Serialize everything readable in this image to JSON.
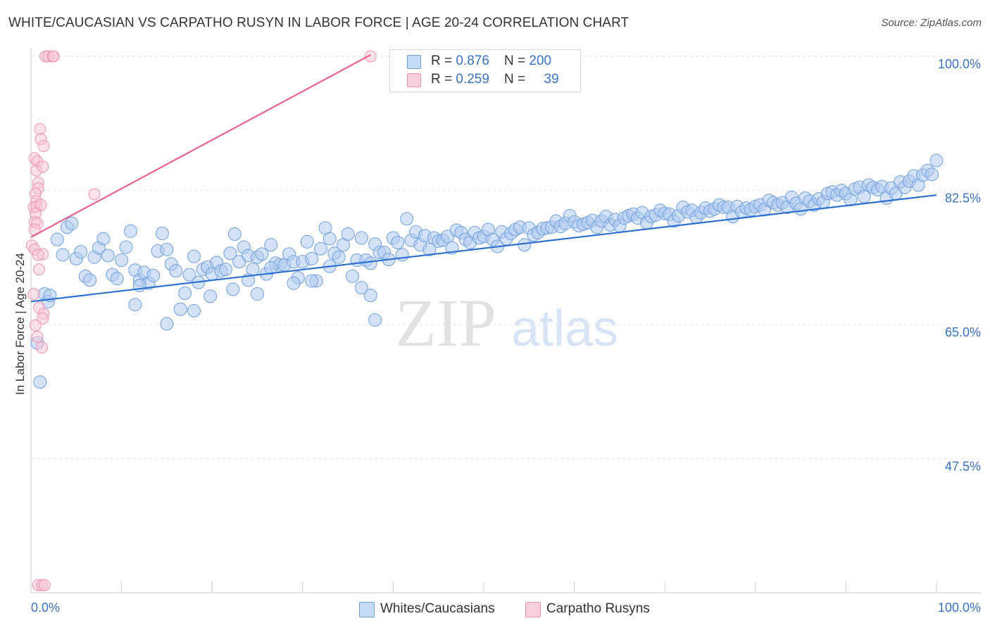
{
  "header": {
    "title": "WHITE/CAUCASIAN VS CARPATHO RUSYN IN LABOR FORCE | AGE 20-24 CORRELATION CHART",
    "source": "Source: ZipAtlas.com"
  },
  "watermark": {
    "zip": "ZIP",
    "atlas": "atlas"
  },
  "legend_top": {
    "rows": [
      {
        "r_label": "R = ",
        "r_value": "0.876",
        "n_label": "N = ",
        "n_value": "200",
        "color": "#7fb0e8"
      },
      {
        "r_label": "R = ",
        "r_value": "0.259",
        "n_label": "N = ",
        "n_value": "39",
        "color": "#f2a0bb"
      }
    ]
  },
  "legend_bottom": {
    "items": [
      {
        "label": "Whites/Caucasians",
        "color": "#7fb0e8"
      },
      {
        "label": "Carpatho Rusyns",
        "color": "#f2a0bb"
      }
    ]
  },
  "chart_data": {
    "type": "scatter",
    "title": "WHITE/CAUCASIAN VS CARPATHO RUSYN IN LABOR FORCE | AGE 20-24 CORRELATION CHART",
    "xlabel": "",
    "ylabel": "In Labor Force | Age 20-24",
    "xlim": [
      0,
      100
    ],
    "ylim": [
      30,
      100
    ],
    "x_tick_labels": [
      "0.0%",
      "100.0%"
    ],
    "y_tick_labels": [
      "100.0%",
      "82.5%",
      "65.0%",
      "47.5%"
    ],
    "y_ticks": [
      100,
      82.5,
      65,
      47.5
    ],
    "grid": true,
    "legend_position": "top-center",
    "colors": {
      "blue_fill": "#aecbf0",
      "blue_stroke": "#6f9fdc",
      "blue_line": "#2e70d1",
      "pink_fill": "#f8c4d3",
      "pink_stroke": "#ee93b1",
      "pink_line": "#e8638f",
      "axis_label": "#3a72c4"
    },
    "series": [
      {
        "name": "Whites/Caucasians",
        "r": 0.876,
        "n": 200,
        "trend": {
          "x": [
            0,
            100
          ],
          "y": [
            68.0,
            81.9
          ]
        },
        "points": [
          [
            0.7,
            62.6
          ],
          [
            1.0,
            57.5
          ],
          [
            1.5,
            69.0
          ],
          [
            1.9,
            68.0
          ],
          [
            2.1,
            68.8
          ],
          [
            2.9,
            76.1
          ],
          [
            3.5,
            74.1
          ],
          [
            4.0,
            77.7
          ],
          [
            4.5,
            78.2
          ],
          [
            5.0,
            73.6
          ],
          [
            5.5,
            74.5
          ],
          [
            6.0,
            71.3
          ],
          [
            6.5,
            70.8
          ],
          [
            7.0,
            73.8
          ],
          [
            7.5,
            75.0
          ],
          [
            8.0,
            76.2
          ],
          [
            8.5,
            74.0
          ],
          [
            9.0,
            71.5
          ],
          [
            9.5,
            71.0
          ],
          [
            10.0,
            73.4
          ],
          [
            10.5,
            75.1
          ],
          [
            11.0,
            77.2
          ],
          [
            11.5,
            72.1
          ],
          [
            12.0,
            70.8
          ],
          [
            12.5,
            71.8
          ],
          [
            13.0,
            70.4
          ],
          [
            13.5,
            71.4
          ],
          [
            14.0,
            74.6
          ],
          [
            14.5,
            76.9
          ],
          [
            15.0,
            74.8
          ],
          [
            15.5,
            72.9
          ],
          [
            16.0,
            72.0
          ],
          [
            16.5,
            67.0
          ],
          [
            17.0,
            69.1
          ],
          [
            17.5,
            71.5
          ],
          [
            18.0,
            73.9
          ],
          [
            18.5,
            70.5
          ],
          [
            19.0,
            72.2
          ],
          [
            19.5,
            72.5
          ],
          [
            20.0,
            71.6
          ],
          [
            20.5,
            73.1
          ],
          [
            21.0,
            72.0
          ],
          [
            21.5,
            72.2
          ],
          [
            22.0,
            74.3
          ],
          [
            22.5,
            76.8
          ],
          [
            23.0,
            73.2
          ],
          [
            23.5,
            75.1
          ],
          [
            24.0,
            74.0
          ],
          [
            24.5,
            72.2
          ],
          [
            25.0,
            73.8
          ],
          [
            25.5,
            74.2
          ],
          [
            26.0,
            71.6
          ],
          [
            26.5,
            75.4
          ],
          [
            27.0,
            73.0
          ],
          [
            27.5,
            72.8
          ],
          [
            28.0,
            72.8
          ],
          [
            28.5,
            74.2
          ],
          [
            29.0,
            73.2
          ],
          [
            29.5,
            71.1
          ],
          [
            30.0,
            73.2
          ],
          [
            30.5,
            75.8
          ],
          [
            31.0,
            73.6
          ],
          [
            31.5,
            70.7
          ],
          [
            32.0,
            74.9
          ],
          [
            32.5,
            77.6
          ],
          [
            33.0,
            76.2
          ],
          [
            33.5,
            74.3
          ],
          [
            34.0,
            73.8
          ],
          [
            34.5,
            75.4
          ],
          [
            35.0,
            76.8
          ],
          [
            35.5,
            71.3
          ],
          [
            36.0,
            73.4
          ],
          [
            36.5,
            76.3
          ],
          [
            37.0,
            73.4
          ],
          [
            37.5,
            73.0
          ],
          [
            38.0,
            75.5
          ],
          [
            38.5,
            74.4
          ],
          [
            39.0,
            74.4
          ],
          [
            39.5,
            73.5
          ],
          [
            40.0,
            76.3
          ],
          [
            40.5,
            75.7
          ],
          [
            41.0,
            74.1
          ],
          [
            41.5,
            78.8
          ],
          [
            42.0,
            76.0
          ],
          [
            42.5,
            77.1
          ],
          [
            43.0,
            75.4
          ],
          [
            43.5,
            76.6
          ],
          [
            44.0,
            74.8
          ],
          [
            44.5,
            76.3
          ],
          [
            45.0,
            75.9
          ],
          [
            45.5,
            76.0
          ],
          [
            46.0,
            76.5
          ],
          [
            46.5,
            75.0
          ],
          [
            47.0,
            77.3
          ],
          [
            47.5,
            77.0
          ],
          [
            48.0,
            76.1
          ],
          [
            48.5,
            75.7
          ],
          [
            49.0,
            77.0
          ],
          [
            49.5,
            76.3
          ],
          [
            50.0,
            76.5
          ],
          [
            50.5,
            77.4
          ],
          [
            51.0,
            76.1
          ],
          [
            51.5,
            75.2
          ],
          [
            52.0,
            77.1
          ],
          [
            52.5,
            76.2
          ],
          [
            53.0,
            76.9
          ],
          [
            53.5,
            77.4
          ],
          [
            54.0,
            77.7
          ],
          [
            54.5,
            75.4
          ],
          [
            55.0,
            77.6
          ],
          [
            55.5,
            76.7
          ],
          [
            56.0,
            77.0
          ],
          [
            56.5,
            77.5
          ],
          [
            57.0,
            77.6
          ],
          [
            57.5,
            77.7
          ],
          [
            58.0,
            78.5
          ],
          [
            58.5,
            77.8
          ],
          [
            59.0,
            78.2
          ],
          [
            59.5,
            79.2
          ],
          [
            60.0,
            78.4
          ],
          [
            60.5,
            77.9
          ],
          [
            61.0,
            78.1
          ],
          [
            61.5,
            78.3
          ],
          [
            62.0,
            78.6
          ],
          [
            62.5,
            77.7
          ],
          [
            63.0,
            78.5
          ],
          [
            63.5,
            79.1
          ],
          [
            64.0,
            78.0
          ],
          [
            64.5,
            78.7
          ],
          [
            65.0,
            77.9
          ],
          [
            65.5,
            78.9
          ],
          [
            66.0,
            79.2
          ],
          [
            66.5,
            79.4
          ],
          [
            67.0,
            78.9
          ],
          [
            67.5,
            79.6
          ],
          [
            68.0,
            78.3
          ],
          [
            68.5,
            79.1
          ],
          [
            69.0,
            79.3
          ],
          [
            69.5,
            79.9
          ],
          [
            70.0,
            79.5
          ],
          [
            70.5,
            79.4
          ],
          [
            71.0,
            78.5
          ],
          [
            71.5,
            79.2
          ],
          [
            72.0,
            80.3
          ],
          [
            72.5,
            79.7
          ],
          [
            73.0,
            79.9
          ],
          [
            73.5,
            79.0
          ],
          [
            74.0,
            79.6
          ],
          [
            74.5,
            80.2
          ],
          [
            75.0,
            79.8
          ],
          [
            75.5,
            80.1
          ],
          [
            76.0,
            80.6
          ],
          [
            76.5,
            80.3
          ],
          [
            77.0,
            80.3
          ],
          [
            77.5,
            79.1
          ],
          [
            78.0,
            80.4
          ],
          [
            78.5,
            79.7
          ],
          [
            79.0,
            80.2
          ],
          [
            79.5,
            80.0
          ],
          [
            80.0,
            80.4
          ],
          [
            80.5,
            80.6
          ],
          [
            81.0,
            80.0
          ],
          [
            81.5,
            81.2
          ],
          [
            82.0,
            80.9
          ],
          [
            82.5,
            80.6
          ],
          [
            83.0,
            80.9
          ],
          [
            83.5,
            80.3
          ],
          [
            84.0,
            81.6
          ],
          [
            84.5,
            80.8
          ],
          [
            85.0,
            80.1
          ],
          [
            85.5,
            81.5
          ],
          [
            86.0,
            81.1
          ],
          [
            86.5,
            80.6
          ],
          [
            87.0,
            81.4
          ],
          [
            87.5,
            81.0
          ],
          [
            88.0,
            82.1
          ],
          [
            88.5,
            82.3
          ],
          [
            89.0,
            81.9
          ],
          [
            89.5,
            82.5
          ],
          [
            90.0,
            82.1
          ],
          [
            90.5,
            81.3
          ],
          [
            91.0,
            82.7
          ],
          [
            91.5,
            82.9
          ],
          [
            92.0,
            81.7
          ],
          [
            92.5,
            83.2
          ],
          [
            93.0,
            82.9
          ],
          [
            93.5,
            82.6
          ],
          [
            94.0,
            83.0
          ],
          [
            94.5,
            81.5
          ],
          [
            95.0,
            82.8
          ],
          [
            95.5,
            82.1
          ],
          [
            96.0,
            83.6
          ],
          [
            96.5,
            82.9
          ],
          [
            97.0,
            83.7
          ],
          [
            97.5,
            84.4
          ],
          [
            98.0,
            83.2
          ],
          [
            98.5,
            84.5
          ],
          [
            99.0,
            85.1
          ],
          [
            99.5,
            84.6
          ],
          [
            100.0,
            86.4
          ],
          [
            38.0,
            65.6
          ],
          [
            15.0,
            65.1
          ],
          [
            37.5,
            68.8
          ],
          [
            18.0,
            66.8
          ],
          [
            12.0,
            70.1
          ],
          [
            25.0,
            69.0
          ],
          [
            33.0,
            72.6
          ],
          [
            36.5,
            69.8
          ],
          [
            31.0,
            70.7
          ],
          [
            24.0,
            70.8
          ],
          [
            26.5,
            72.4
          ],
          [
            29.0,
            70.4
          ],
          [
            19.8,
            68.7
          ],
          [
            22.3,
            69.6
          ],
          [
            11.5,
            67.6
          ]
        ]
      },
      {
        "name": "Carpatho Rusyns",
        "r": 0.259,
        "n": 39,
        "trend": {
          "x": [
            0,
            37.5
          ],
          "y": [
            76.4,
            100.4
          ]
        },
        "points": [
          [
            1.6,
            100.4
          ],
          [
            1.9,
            100.4
          ],
          [
            2.4,
            100.4
          ],
          [
            2.5,
            100.4
          ],
          [
            37.5,
            100.4
          ],
          [
            1.0,
            90.5
          ],
          [
            1.1,
            89.2
          ],
          [
            1.4,
            88.3
          ],
          [
            0.4,
            86.7
          ],
          [
            0.7,
            86.3
          ],
          [
            0.6,
            85.1
          ],
          [
            1.3,
            85.6
          ],
          [
            0.8,
            83.5
          ],
          [
            0.8,
            82.8
          ],
          [
            0.5,
            82.1
          ],
          [
            0.6,
            81.1
          ],
          [
            0.3,
            80.3
          ],
          [
            0.6,
            80.4
          ],
          [
            1.1,
            80.6
          ],
          [
            0.5,
            79.5
          ],
          [
            0.4,
            78.4
          ],
          [
            0.7,
            78.2
          ],
          [
            0.4,
            77.4
          ],
          [
            0.1,
            75.3
          ],
          [
            0.4,
            74.8
          ],
          [
            1.3,
            74.2
          ],
          [
            0.8,
            74.1
          ],
          [
            0.9,
            72.2
          ],
          [
            0.3,
            69.0
          ],
          [
            0.9,
            67.2
          ],
          [
            1.4,
            66.4
          ],
          [
            1.3,
            65.8
          ],
          [
            0.5,
            64.9
          ],
          [
            0.7,
            63.4
          ],
          [
            1.2,
            62.0
          ],
          [
            7.0,
            82.0
          ],
          [
            0.8,
            31.0
          ],
          [
            1.2,
            31.0
          ],
          [
            1.5,
            31.0
          ]
        ]
      }
    ]
  }
}
